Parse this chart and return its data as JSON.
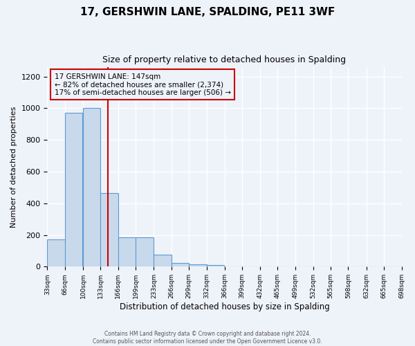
{
  "title": "17, GERSHWIN LANE, SPALDING, PE11 3WF",
  "subtitle": "Size of property relative to detached houses in Spalding",
  "xlabel": "Distribution of detached houses by size in Spalding",
  "ylabel": "Number of detached properties",
  "bin_edges": [
    33,
    66,
    100,
    133,
    166,
    199,
    233,
    266,
    299,
    332,
    366,
    399,
    432,
    465,
    499,
    532,
    565,
    598,
    632,
    665,
    698
  ],
  "bar_heights": [
    170,
    970,
    1000,
    465,
    185,
    185,
    75,
    25,
    15,
    10,
    0,
    0,
    0,
    0,
    0,
    0,
    0,
    0,
    0,
    0
  ],
  "bar_color": "#c8d9eb",
  "bar_edge_color": "#5b9bd5",
  "property_size": 147,
  "red_line_color": "#cc0000",
  "annotation_line1": "17 GERSHWIN LANE: 147sqm",
  "annotation_line2": "← 82% of detached houses are smaller (2,374)",
  "annotation_line3": "17% of semi-detached houses are larger (506) →",
  "annotation_box_edge_color": "#cc0000",
  "ylim": [
    0,
    1260
  ],
  "yticks": [
    0,
    200,
    400,
    600,
    800,
    1000,
    1200
  ],
  "tick_labels": [
    "33sqm",
    "66sqm",
    "100sqm",
    "133sqm",
    "166sqm",
    "199sqm",
    "233sqm",
    "266sqm",
    "299sqm",
    "332sqm",
    "366sqm",
    "399sqm",
    "432sqm",
    "465sqm",
    "499sqm",
    "532sqm",
    "565sqm",
    "598sqm",
    "632sqm",
    "665sqm",
    "698sqm"
  ],
  "footer_line1": "Contains HM Land Registry data © Crown copyright and database right 2024.",
  "footer_line2": "Contains public sector information licensed under the Open Government Licence v3.0.",
  "background_color": "#eef2f9",
  "grid_color": "#ffffff"
}
